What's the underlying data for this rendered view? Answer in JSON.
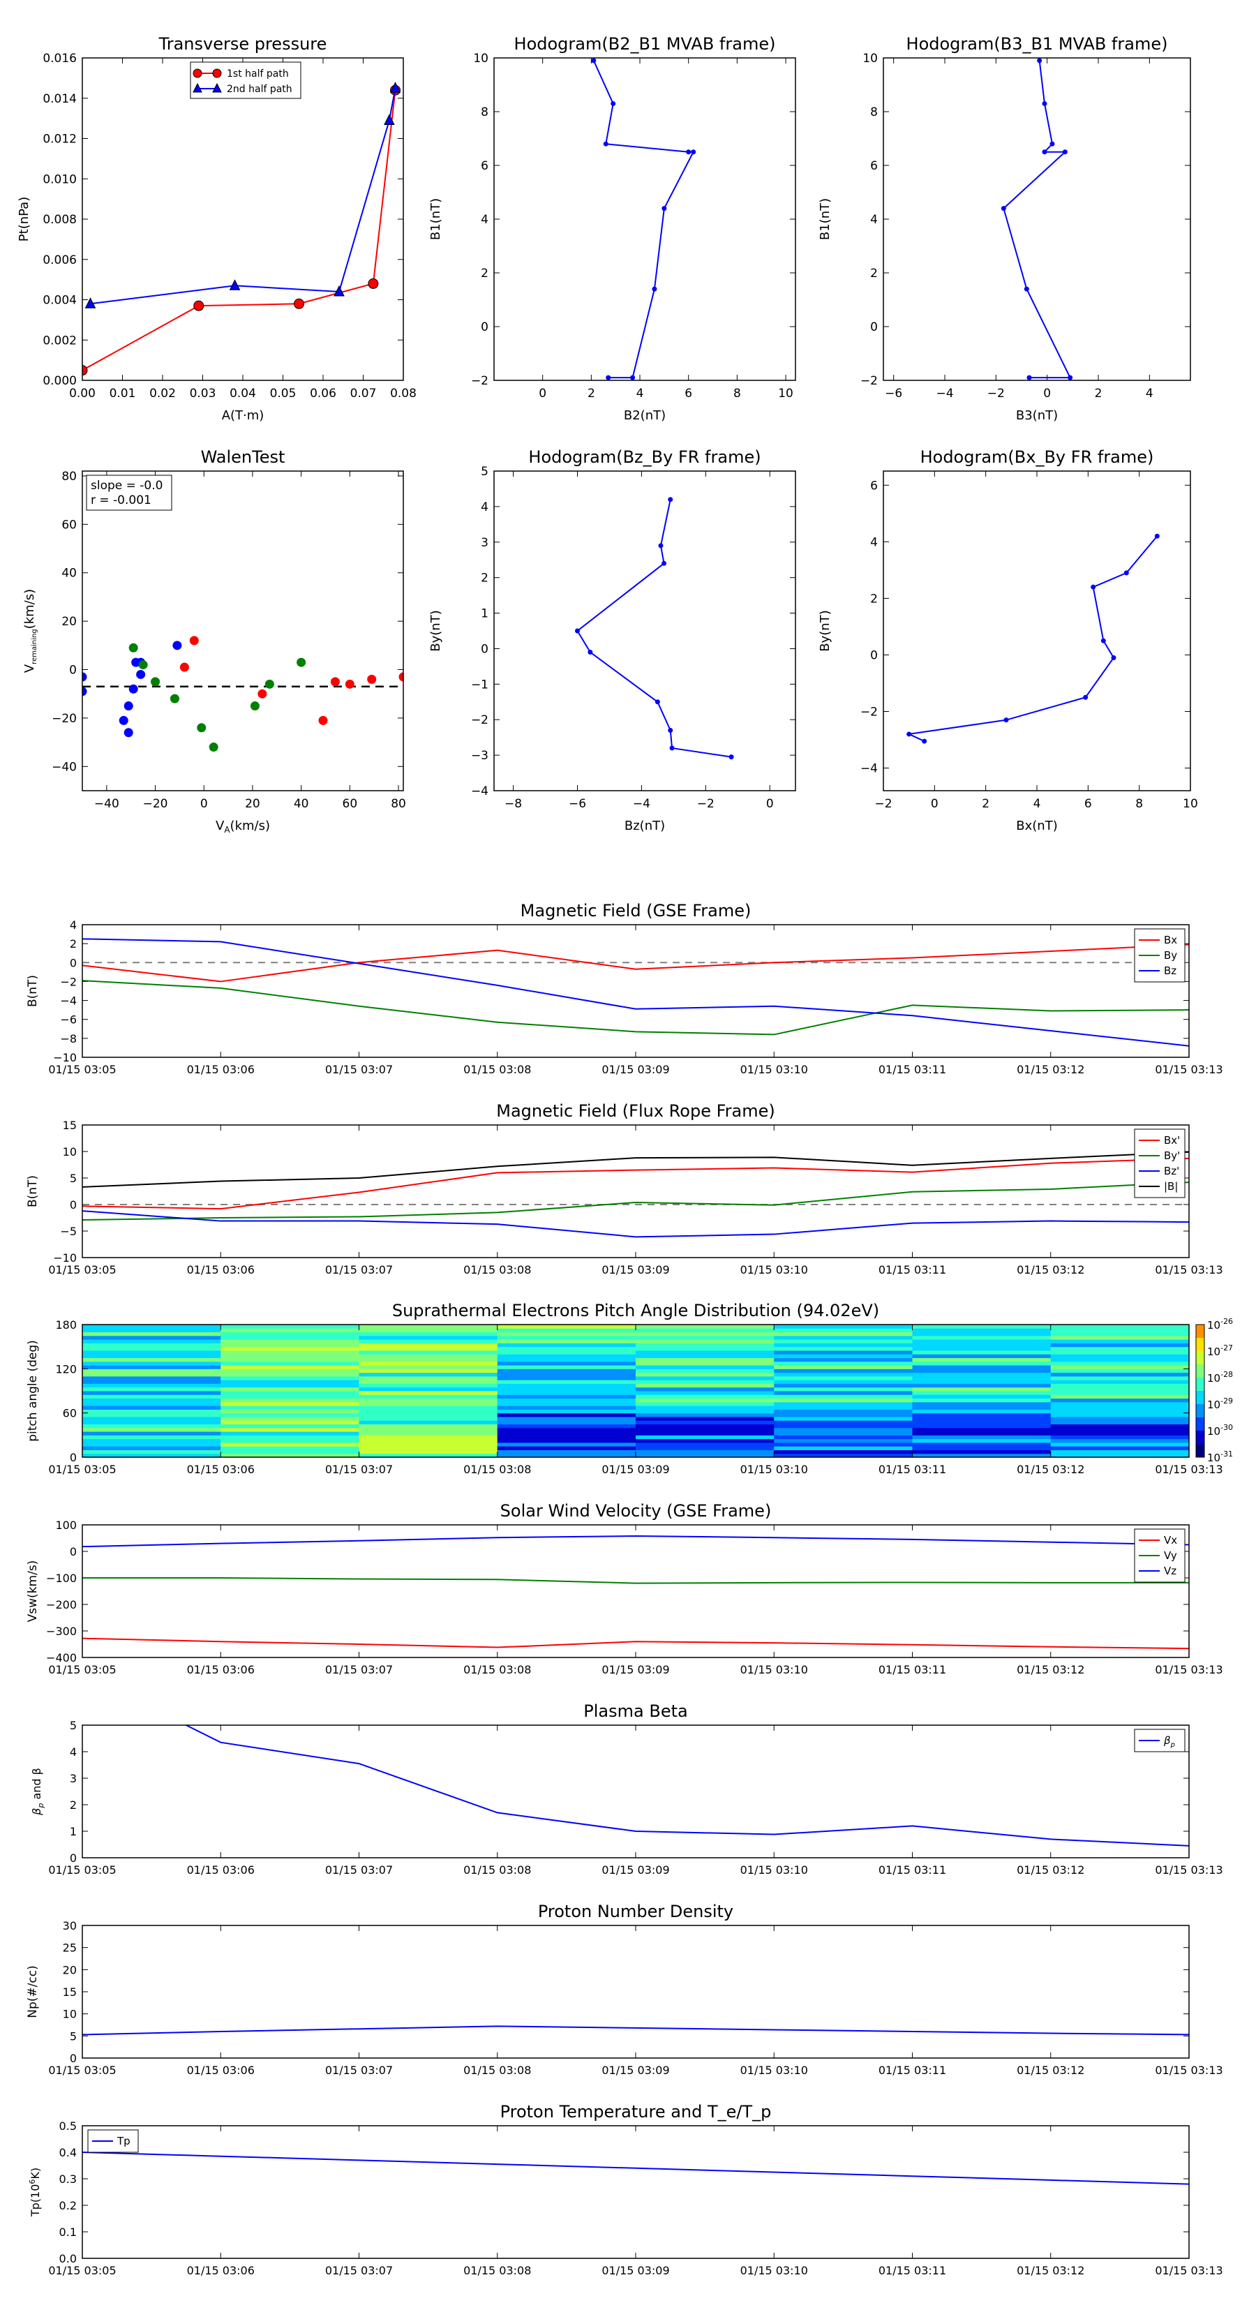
{
  "time_ticks": [
    "01/15 03:05",
    "01/15 03:06",
    "01/15 03:07",
    "01/15 03:08",
    "01/15 03:09",
    "01/15 03:10",
    "01/15 03:11",
    "01/15 03:12",
    "01/15 03:13"
  ],
  "colors": {
    "red": "#ff0000",
    "green": "#008000",
    "blue": "#0000ff",
    "black": "#000000",
    "gray": "#808080",
    "darkred": "#8b0000"
  },
  "chart_data": [
    {
      "id": "pt",
      "type": "line",
      "title": "Transverse pressure",
      "xlabel": "A(T·m)",
      "ylabel": "Pt(nPa)",
      "xlim": [
        0,
        0.08
      ],
      "ylim": [
        0,
        0.016
      ],
      "xticks": [
        "0.00",
        "0.01",
        "0.02",
        "0.03",
        "0.04",
        "0.05",
        "0.06",
        "0.07",
        "0.08"
      ],
      "yticks": [
        "0.000",
        "0.002",
        "0.004",
        "0.006",
        "0.008",
        "0.010",
        "0.012",
        "0.014",
        "0.016"
      ],
      "legend": "top-center",
      "series": [
        {
          "name": "1st half path",
          "color": "#ff0000",
          "marker": "circle",
          "x": [
            0.0,
            0.029,
            0.054,
            0.0725,
            0.078
          ],
          "y": [
            0.0005,
            0.0037,
            0.0038,
            0.0048,
            0.0144
          ]
        },
        {
          "name": "2nd half path",
          "color": "#0000ff",
          "marker": "triangle",
          "x": [
            0.002,
            0.038,
            0.064,
            0.0765,
            0.078
          ],
          "y": [
            0.0038,
            0.0047,
            0.0044,
            0.0129,
            0.0145
          ]
        }
      ]
    },
    {
      "id": "h1",
      "type": "line",
      "title": "Hodogram(B2_B1 MVAB frame)",
      "xlabel": "B2(nT)",
      "ylabel": "B1(nT)",
      "xlim": [
        -2,
        10.4
      ],
      "ylim": [
        -2,
        10
      ],
      "xticks": [
        "0",
        "2",
        "4",
        "6",
        "8",
        "10"
      ],
      "yticks": [
        "−2",
        "0",
        "2",
        "4",
        "6",
        "8",
        "10"
      ],
      "series": [
        {
          "color": "#0000ff",
          "marker": "dot",
          "x": [
            2.1,
            2.9,
            2.6,
            6.0,
            6.2,
            5.0,
            4.6,
            3.7,
            2.7
          ],
          "y": [
            9.9,
            8.3,
            6.8,
            6.5,
            6.5,
            4.4,
            1.4,
            -1.9,
            -1.9
          ]
        }
      ]
    },
    {
      "id": "h2",
      "type": "line",
      "title": "Hodogram(B3_B1 MVAB frame)",
      "xlabel": "B3(nT)",
      "ylabel": "B1(nT)",
      "xlim": [
        -6.4,
        5.6
      ],
      "ylim": [
        -2,
        10
      ],
      "xticks": [
        "−6",
        "−4",
        "−2",
        "0",
        "2",
        "4"
      ],
      "yticks": [
        "−2",
        "0",
        "2",
        "4",
        "6",
        "8",
        "10"
      ],
      "series": [
        {
          "color": "#0000ff",
          "marker": "dot",
          "x": [
            -0.3,
            -0.1,
            0.2,
            -0.1,
            0.7,
            -1.7,
            -0.8,
            0.9,
            -0.7
          ],
          "y": [
            9.9,
            8.3,
            6.8,
            6.5,
            6.5,
            4.4,
            1.4,
            -1.9,
            -1.9
          ]
        }
      ]
    },
    {
      "id": "walen",
      "type": "scatter",
      "title": "WalenTest",
      "xlabel": "V_A(km/s)",
      "ylabel": "V_remaining(km/s)",
      "xlim": [
        -50,
        82
      ],
      "ylim": [
        -50,
        82
      ],
      "xticks": [
        "−40",
        "−20",
        "0",
        "20",
        "40",
        "60",
        "80"
      ],
      "yticks": [
        "−40",
        "−20",
        "0",
        "20",
        "40",
        "60",
        "80"
      ],
      "annotation": [
        "slope = -0.0",
        "r = -0.001"
      ],
      "fit": {
        "slope": -0.0,
        "intercept": -7
      },
      "series": [
        {
          "color": "#0000ff",
          "x": [
            -50,
            -50,
            -31,
            -29,
            -28,
            -26,
            -26,
            -33,
            -31,
            -11
          ],
          "y": [
            -3,
            -9,
            -15,
            -8,
            3,
            -2,
            3,
            -21,
            -26,
            10
          ]
        },
        {
          "color": "#008000",
          "x": [
            -29,
            -25,
            -20,
            -12,
            -1,
            4,
            21,
            27,
            40
          ],
          "y": [
            9,
            2,
            -5,
            -12,
            -24,
            -32,
            -15,
            -6,
            3
          ]
        },
        {
          "color": "#ff0000",
          "x": [
            -8,
            -4,
            24,
            49,
            54,
            60,
            69,
            82
          ],
          "y": [
            1,
            12,
            -10,
            -21,
            -5,
            -6,
            -4,
            -3
          ]
        }
      ]
    },
    {
      "id": "h3",
      "type": "line",
      "title": "Hodogram(Bz_By FR frame)",
      "xlabel": "Bz(nT)",
      "ylabel": "By(nT)",
      "xlim": [
        -8.6,
        0.8
      ],
      "ylim": [
        -4,
        5
      ],
      "xticks": [
        "−8",
        "−6",
        "−4",
        "−2",
        "0"
      ],
      "yticks": [
        "−4",
        "−3",
        "−2",
        "−1",
        "0",
        "1",
        "2",
        "3",
        "4",
        "5"
      ],
      "series": [
        {
          "color": "#0000ff",
          "marker": "dot",
          "x": [
            -3.1,
            -3.4,
            -3.3,
            -6.0,
            -5.6,
            -3.5,
            -3.1,
            -3.05,
            -1.2
          ],
          "y": [
            4.2,
            2.9,
            2.4,
            0.5,
            -0.1,
            -1.5,
            -2.3,
            -2.8,
            -3.05
          ]
        }
      ]
    },
    {
      "id": "h4",
      "type": "line",
      "title": "Hodogram(Bx_By FR frame)",
      "xlabel": "Bx(nT)",
      "ylabel": "By(nT)",
      "xlim": [
        -2,
        10
      ],
      "ylim": [
        -4.8,
        6.5
      ],
      "xticks": [
        "−2",
        "0",
        "2",
        "4",
        "6",
        "8",
        "10"
      ],
      "yticks": [
        "−4",
        "−2",
        "0",
        "2",
        "4",
        "6"
      ],
      "series": [
        {
          "color": "#0000ff",
          "marker": "dot",
          "x": [
            8.7,
            7.5,
            6.2,
            6.6,
            7.0,
            5.9,
            2.8,
            -1.0,
            -0.4
          ],
          "y": [
            4.2,
            2.9,
            2.4,
            0.5,
            -0.1,
            -1.5,
            -2.3,
            -2.8,
            -3.05
          ]
        }
      ]
    },
    {
      "id": "bgse",
      "type": "line",
      "title": "Magnetic Field (GSE Frame)",
      "ylabel": "B(nT)",
      "ylim": [
        -10,
        4
      ],
      "yticks": [
        "−10",
        "−8",
        "−6",
        "−4",
        "−2",
        "0",
        "2",
        "4"
      ],
      "zero_line": true,
      "legend": "top-right",
      "series": [
        {
          "name": "Bx",
          "color": "#ff0000",
          "y": [
            -0.3,
            -2.0,
            0.0,
            1.3,
            -0.7,
            0.0,
            0.5,
            1.2,
            1.9
          ]
        },
        {
          "name": "By",
          "color": "#008000",
          "y": [
            -1.9,
            -2.7,
            -4.6,
            -6.3,
            -7.3,
            -7.6,
            -4.5,
            -5.1,
            -5.0
          ]
        },
        {
          "name": "Bz",
          "color": "#0000ff",
          "y": [
            2.5,
            2.2,
            -0.1,
            -2.4,
            -4.9,
            -4.6,
            -5.6,
            -7.2,
            -8.8
          ]
        }
      ]
    },
    {
      "id": "bfr",
      "type": "line",
      "title": "Magnetic Field (Flux Rope Frame)",
      "ylabel": "B(nT)",
      "ylim": [
        -10,
        15
      ],
      "yticks": [
        "−10",
        "−5",
        "0",
        "5",
        "10",
        "15"
      ],
      "zero_line": true,
      "legend": "top-right",
      "series": [
        {
          "name": "Bx'",
          "color": "#ff0000",
          "y": [
            -0.3,
            -0.8,
            2.3,
            6.0,
            6.5,
            6.9,
            6.1,
            7.8,
            8.7
          ]
        },
        {
          "name": "By'",
          "color": "#008000",
          "y": [
            -2.9,
            -2.5,
            -2.3,
            -1.5,
            0.4,
            -0.1,
            2.4,
            2.9,
            4.2
          ]
        },
        {
          "name": "Bz'",
          "color": "#0000ff",
          "y": [
            -1.2,
            -3.1,
            -3.1,
            -3.7,
            -6.1,
            -5.6,
            -3.5,
            -3.1,
            -3.3
          ]
        },
        {
          "name": "|B|",
          "color": "#000000",
          "y": [
            3.3,
            4.4,
            5.0,
            7.2,
            8.8,
            8.9,
            7.4,
            8.7,
            9.9
          ]
        }
      ]
    },
    {
      "id": "pad",
      "type": "heatmap",
      "title": "Suprathermal Electrons Pitch Angle Distribution (94.02eV)",
      "ylabel": "pitch angle (deg)",
      "yticks": [
        "0",
        "60",
        "120",
        "180"
      ],
      "colorbar": {
        "ticks": [
          "10^-26",
          "10^-27",
          "10^-28",
          "10^-29",
          "10^-30",
          "10^-31"
        ]
      }
    },
    {
      "id": "vsw",
      "type": "line",
      "title": "Solar Wind Velocity (GSE Frame)",
      "ylabel": "Vsw(km/s)",
      "ylim": [
        -400,
        100
      ],
      "yticks": [
        "−400",
        "−300",
        "−200",
        "−100",
        "0",
        "100"
      ],
      "legend": "top-right",
      "series": [
        {
          "name": "Vx",
          "color": "#ff0000",
          "y": [
            -328,
            -340,
            -350,
            -362,
            -340,
            -345,
            -352,
            -360,
            -366
          ]
        },
        {
          "name": "Vy",
          "color": "#008000",
          "y": [
            -100,
            -100,
            -104,
            -106,
            -120,
            -118,
            -117,
            -118,
            -118
          ]
        },
        {
          "name": "Vz",
          "color": "#0000ff",
          "y": [
            18,
            30,
            40,
            52,
            58,
            52,
            45,
            35,
            25
          ]
        }
      ]
    },
    {
      "id": "beta",
      "type": "line",
      "title": "Plasma Beta",
      "ylabel": "β_p and β",
      "ylim": [
        0,
        5
      ],
      "yticks": [
        "0",
        "1",
        "2",
        "3",
        "4",
        "5"
      ],
      "legend": "top-right",
      "series": [
        {
          "name": "β_p",
          "color": "#0000ff",
          "x_index": [
            0,
            0.75,
            1,
            2,
            3,
            4,
            5,
            6,
            7,
            8
          ],
          "y": [
            6.9,
            5.0,
            4.35,
            3.55,
            1.7,
            1.0,
            0.88,
            1.2,
            0.7,
            0.45
          ]
        }
      ]
    },
    {
      "id": "np",
      "type": "line",
      "title": "Proton Number Density",
      "ylabel": "Np(#/cc)",
      "ylim": [
        0,
        30
      ],
      "yticks": [
        "0",
        "5",
        "10",
        "15",
        "20",
        "25",
        "30"
      ],
      "series": [
        {
          "color": "#0000ff",
          "y": [
            5.3,
            6.0,
            6.6,
            7.2,
            6.8,
            6.4,
            6.0,
            5.6,
            5.3
          ]
        }
      ]
    },
    {
      "id": "tp",
      "type": "line",
      "title": "Proton Temperature and T_e/T_p",
      "ylabel": "Tp(10^6K)",
      "ylim": [
        0,
        0.5
      ],
      "yticks": [
        "0.0",
        "0.1",
        "0.2",
        "0.3",
        "0.4",
        "0.5"
      ],
      "legend": "top-left",
      "series": [
        {
          "name": "Tp",
          "color": "#0000ff",
          "y": [
            0.4,
            0.385,
            0.37,
            0.355,
            0.34,
            0.325,
            0.31,
            0.295,
            0.28
          ]
        }
      ]
    }
  ]
}
